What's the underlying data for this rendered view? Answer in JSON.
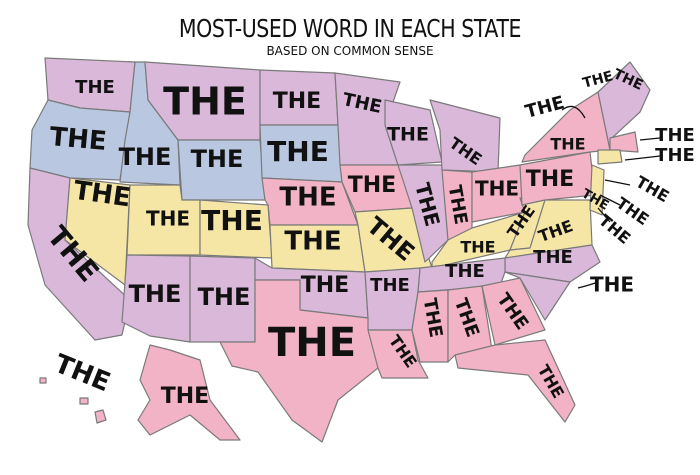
{
  "title": "MOST-USED WORD IN EACH STATE",
  "subtitle": "BASED ON COMMON SENSE",
  "colors": {
    "purple": "#d9b8d9",
    "blue": "#b9c7e0",
    "yellow": "#f6e6a6",
    "pink": "#f2b3c6"
  },
  "labels": [
    "THE",
    "THE",
    "THE",
    "THE",
    "THE",
    "THE",
    "THE",
    "THE",
    "THE",
    "THE",
    "THE",
    "THE",
    "THE",
    "THE",
    "THE",
    "THE",
    "THE",
    "THE",
    "THE",
    "THE",
    "THE",
    "THE",
    "THE",
    "THE",
    "THE",
    "THE",
    "THE",
    "THE",
    "THE",
    "THE",
    "THE",
    "THE",
    "THE",
    "THE",
    "THE",
    "THE",
    "THE",
    "THE",
    "THE",
    "THE",
    "THE",
    "THE",
    "THE",
    "THE",
    "THE",
    "THE",
    "THE",
    "THE",
    "THE",
    "THE"
  ]
}
